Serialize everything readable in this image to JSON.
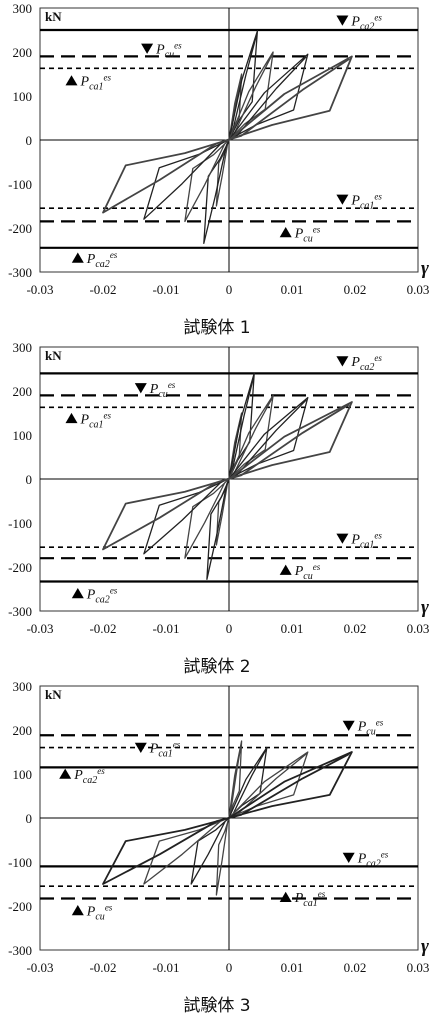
{
  "chart_data": [
    {
      "type": "line",
      "caption": "試験体 1",
      "unit_label": "kN",
      "xlabel": "γ",
      "xlim": [
        -0.03,
        0.03
      ],
      "ylim": [
        -300,
        300
      ],
      "x_ticks": [
        "-0.03",
        "-0.02",
        "-0.01",
        "0",
        "0.01",
        "0.02",
        "0.03"
      ],
      "y_ticks": [
        "300",
        "200",
        "100",
        "0",
        "-100",
        "-200",
        "-300"
      ],
      "reference_lines": [
        {
          "style": "solid",
          "value": 250
        },
        {
          "style": "long-dash",
          "value": 190
        },
        {
          "style": "short-dash",
          "value": 163
        },
        {
          "style": "short-dash",
          "value": -155
        },
        {
          "style": "long-dash",
          "value": -185
        },
        {
          "style": "solid",
          "value": -245
        }
      ],
      "markers": [
        {
          "symbol": "▼",
          "label": "P_ca2^es",
          "x": 0.018,
          "y": 272
        },
        {
          "symbol": "▼",
          "label": "P_cu^es",
          "x": -0.013,
          "y": 208
        },
        {
          "symbol": "▲",
          "label": "P_ca1^es",
          "x": -0.025,
          "y": 135
        },
        {
          "symbol": "▼",
          "label": "P_ca1^es",
          "x": 0.018,
          "y": -135
        },
        {
          "symbol": "▲",
          "label": "P_cu^es",
          "x": 0.009,
          "y": -210
        },
        {
          "symbol": "▲",
          "label": "P_ca2^es",
          "x": -0.024,
          "y": -268
        }
      ],
      "loops": [
        {
          "gmax": 0.002,
          "gmin": -0.002,
          "pp": 150,
          "pn": -150
        },
        {
          "gmax": 0.0045,
          "gmin": -0.004,
          "pp": 248,
          "pn": -235
        },
        {
          "gmax": 0.007,
          "gmin": -0.007,
          "pp": 200,
          "pn": -185
        },
        {
          "gmax": 0.0125,
          "gmin": -0.0135,
          "pp": 195,
          "pn": -180
        },
        {
          "gmax": 0.0195,
          "gmin": -0.02,
          "pp": 190,
          "pn": -165
        }
      ]
    },
    {
      "type": "line",
      "caption": "試験体 2",
      "unit_label": "kN",
      "xlabel": "γ",
      "xlim": [
        -0.03,
        0.03
      ],
      "ylim": [
        -300,
        300
      ],
      "x_ticks": [
        "-0.03",
        "-0.02",
        "-0.01",
        "0",
        "0.01",
        "0.02",
        "0.03"
      ],
      "y_ticks": [
        "300",
        "200",
        "100",
        "0",
        "-100",
        "-200",
        "-300"
      ],
      "reference_lines": [
        {
          "style": "solid",
          "value": 240
        },
        {
          "style": "long-dash",
          "value": 190
        },
        {
          "style": "short-dash",
          "value": 163
        },
        {
          "style": "short-dash",
          "value": -155
        },
        {
          "style": "long-dash",
          "value": -180
        },
        {
          "style": "solid",
          "value": -233
        }
      ],
      "markers": [
        {
          "symbol": "▼",
          "label": "P_ca2^es",
          "x": 0.018,
          "y": 268
        },
        {
          "symbol": "▼",
          "label": "P_cu^es",
          "x": -0.014,
          "y": 207
        },
        {
          "symbol": "▲",
          "label": "P_ca1^es",
          "x": -0.025,
          "y": 138
        },
        {
          "symbol": "▼",
          "label": "P_ca1^es",
          "x": 0.018,
          "y": -135
        },
        {
          "symbol": "▲",
          "label": "P_cu^es",
          "x": 0.009,
          "y": -207
        },
        {
          "symbol": "▲",
          "label": "P_ca2^es",
          "x": -0.024,
          "y": -260
        }
      ],
      "loops": [
        {
          "gmax": 0.002,
          "gmin": -0.002,
          "pp": 150,
          "pn": -150
        },
        {
          "gmax": 0.004,
          "gmin": -0.0035,
          "pp": 240,
          "pn": -228
        },
        {
          "gmax": 0.007,
          "gmin": -0.007,
          "pp": 190,
          "pn": -180
        },
        {
          "gmax": 0.0125,
          "gmin": -0.0135,
          "pp": 185,
          "pn": -170
        },
        {
          "gmax": 0.0195,
          "gmin": -0.02,
          "pp": 175,
          "pn": -160
        }
      ]
    },
    {
      "type": "line",
      "caption": "試験体 3",
      "unit_label": "kN",
      "xlabel": "γ",
      "xlim": [
        -0.03,
        0.03
      ],
      "ylim": [
        -300,
        300
      ],
      "x_ticks": [
        "-0.03",
        "-0.02",
        "-0.01",
        "0",
        "0.01",
        "0.02",
        "0.03"
      ],
      "y_ticks": [
        "300",
        "200",
        "100",
        "0",
        "-100",
        "-200",
        "-300"
      ],
      "reference_lines": [
        {
          "style": "long-dash",
          "value": 188
        },
        {
          "style": "short-dash",
          "value": 160
        },
        {
          "style": "solid",
          "value": 115
        },
        {
          "style": "solid",
          "value": -110
        },
        {
          "style": "short-dash",
          "value": -155
        },
        {
          "style": "long-dash",
          "value": -183
        }
      ],
      "markers": [
        {
          "symbol": "▼",
          "label": "P_ca1^es",
          "x": -0.014,
          "y": 160
        },
        {
          "symbol": "▼",
          "label": "P_cu^es",
          "x": 0.019,
          "y": 210
        },
        {
          "symbol": "▲",
          "label": "P_ca2^es",
          "x": -0.026,
          "y": 100
        },
        {
          "symbol": "▼",
          "label": "P_ca2^es",
          "x": 0.019,
          "y": -90
        },
        {
          "symbol": "▲",
          "label": "P_cu^es",
          "x": -0.024,
          "y": -210
        },
        {
          "symbol": "▲",
          "label": "P_ca1^es",
          "x": 0.009,
          "y": -180
        }
      ],
      "loops": [
        {
          "gmax": 0.002,
          "gmin": -0.002,
          "pp": 175,
          "pn": -175
        },
        {
          "gmax": 0.006,
          "gmin": -0.006,
          "pp": 160,
          "pn": -150
        },
        {
          "gmax": 0.0125,
          "gmin": -0.0135,
          "pp": 150,
          "pn": -150
        },
        {
          "gmax": 0.0195,
          "gmin": -0.02,
          "pp": 150,
          "pn": -150
        }
      ]
    }
  ]
}
